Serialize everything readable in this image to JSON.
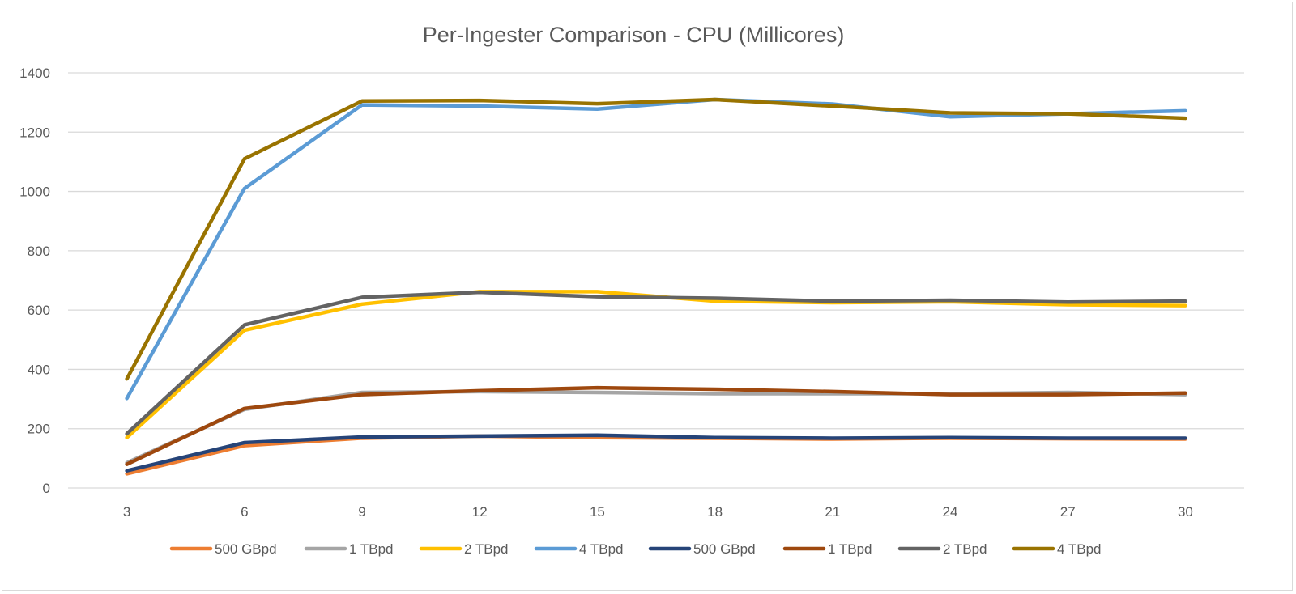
{
  "chart_data": {
    "type": "line",
    "title": "Per-Ingester Comparison - CPU (Millicores)",
    "xlabel": "",
    "ylabel": "",
    "x": [
      3,
      6,
      9,
      12,
      15,
      18,
      21,
      24,
      27,
      30
    ],
    "ylim": [
      0,
      1400
    ],
    "yticks": [
      0,
      200,
      400,
      600,
      800,
      1000,
      1200,
      1400
    ],
    "grid": true,
    "legend": "bottom",
    "series": [
      {
        "name": "500 GBpd",
        "color": "#ED7D31",
        "values": [
          48,
          143,
          168,
          175,
          170,
          168,
          165,
          168,
          166,
          165
        ]
      },
      {
        "name": "1 TBpd",
        "color": "#A5A5A5",
        "values": [
          85,
          265,
          322,
          325,
          322,
          318,
          318,
          318,
          322,
          315
        ]
      },
      {
        "name": "2 TBpd",
        "color": "#FFC000",
        "values": [
          170,
          532,
          620,
          662,
          662,
          630,
          625,
          628,
          618,
          615
        ]
      },
      {
        "name": "4 TBpd",
        "color": "#5B9BD5",
        "values": [
          302,
          1010,
          1292,
          1288,
          1278,
          1310,
          1295,
          1252,
          1262,
          1272
        ]
      },
      {
        "name": "500 GBpd",
        "color": "#264478",
        "values": [
          58,
          153,
          172,
          175,
          178,
          170,
          168,
          170,
          168,
          168
        ]
      },
      {
        "name": "1 TBpd",
        "color": "#9E480E",
        "values": [
          80,
          268,
          315,
          328,
          338,
          333,
          325,
          315,
          315,
          320
        ]
      },
      {
        "name": "2 TBpd",
        "color": "#636363",
        "values": [
          183,
          550,
          643,
          660,
          645,
          640,
          630,
          633,
          627,
          630
        ]
      },
      {
        "name": "4 TBpd",
        "color": "#997300",
        "values": [
          368,
          1110,
          1305,
          1307,
          1296,
          1310,
          1288,
          1265,
          1262,
          1247
        ]
      }
    ]
  }
}
